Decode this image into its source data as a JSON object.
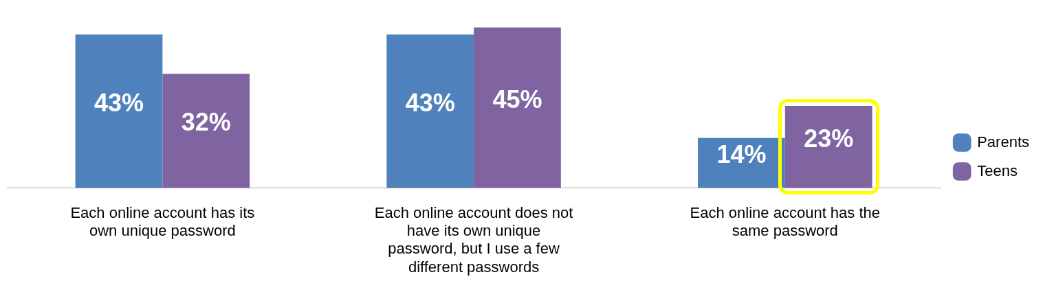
{
  "chart_data": {
    "type": "bar",
    "categories": [
      "Each online account has its own unique password",
      "Each online account does not have its own unique password, but I use a few different passwords",
      "Each online account has the same password"
    ],
    "series": [
      {
        "name": "Parents",
        "color": "#4f81bd",
        "values": [
          43,
          43,
          14
        ],
        "value_labels": [
          "43%",
          "43%",
          "14%"
        ]
      },
      {
        "name": "Teens",
        "color": "#8064a2",
        "values": [
          32,
          45,
          23
        ],
        "value_labels": [
          "32%",
          "45%",
          "23%"
        ]
      }
    ],
    "legend": "right",
    "grid": false,
    "tick_labels": "x"
  }
}
